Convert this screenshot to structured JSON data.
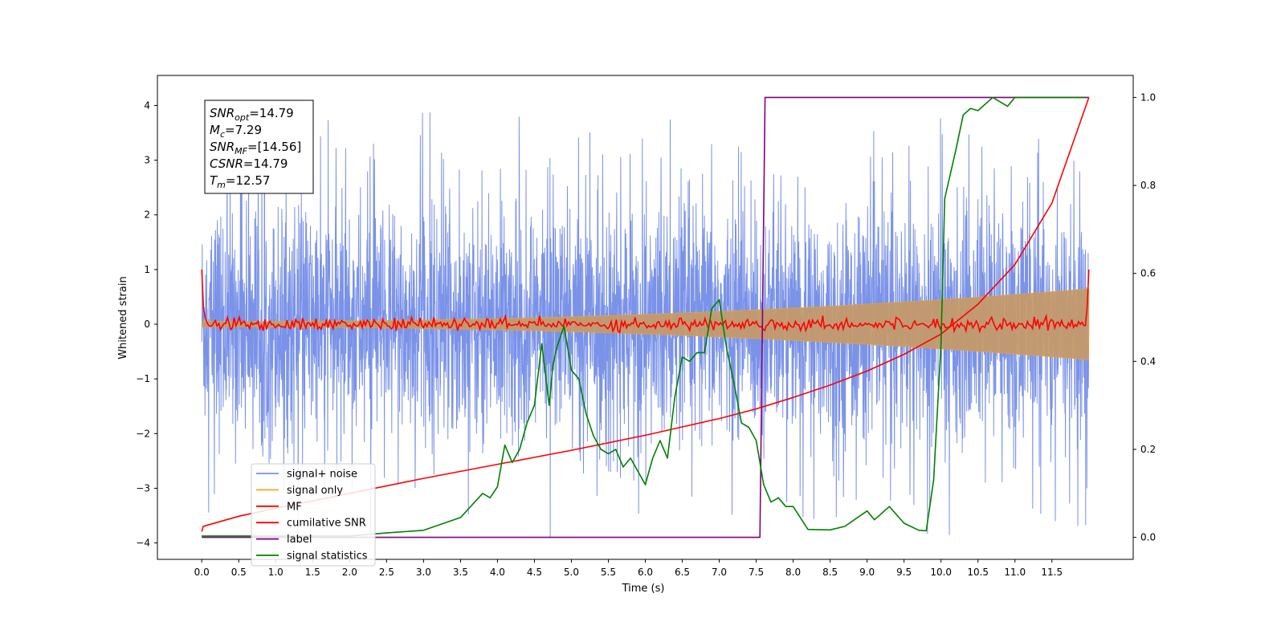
{
  "chart_data": {
    "type": "line",
    "xlabel": "Time (s)",
    "ylabel_left": "Whitened strain",
    "ylabel_right": "",
    "xlim": [
      -0.6,
      12.6
    ],
    "ylim_left": [
      -4.3,
      4.55
    ],
    "ylim_right": [
      -0.05,
      1.05
    ],
    "x_ticks": [
      0.0,
      0.5,
      1.0,
      1.5,
      2.0,
      2.5,
      3.0,
      3.5,
      4.0,
      4.5,
      5.0,
      5.5,
      6.0,
      6.5,
      7.0,
      7.5,
      8.0,
      8.5,
      9.0,
      9.5,
      10.0,
      10.5,
      11.0,
      11.5
    ],
    "x_tick_labels": [
      "0.0",
      "0.5",
      "1.0",
      "1.5",
      "2.0",
      "2.5",
      "3.0",
      "3.5",
      "4.0",
      "4.5",
      "5.0",
      "5.5",
      "6.0",
      "6.5",
      "7.0",
      "7.5",
      "8.0",
      "8.5",
      "9.0",
      "9.5",
      "10.0",
      "10.5",
      "11.0",
      "11.5"
    ],
    "y_left_ticks": [
      -4,
      -3,
      -2,
      -1,
      0,
      1,
      2,
      3,
      4
    ],
    "y_left_tick_labels": [
      "−4",
      "−3",
      "−2",
      "−1",
      "0",
      "1",
      "2",
      "3",
      "4"
    ],
    "y_right_ticks": [
      0.0,
      0.2,
      0.4,
      0.6,
      0.8,
      1.0
    ],
    "y_right_tick_labels": [
      "0.0",
      "0.2",
      "0.4",
      "0.6",
      "0.8",
      "1.0"
    ],
    "grid": false,
    "legend_position": "bottom-left",
    "colors": {
      "signal_noise": "#6b86e6",
      "signal_only": "#f5a623",
      "signal_fill": "#c49a6c",
      "mf": "#ff0000",
      "cumulative_snr": "#ff0000",
      "label": "#800080",
      "signal_statistics": "#008000"
    },
    "annotation": {
      "lines": [
        {
          "sym": "SNR",
          "sub": "opt",
          "val": "=14.79"
        },
        {
          "sym": "M",
          "sub": "c",
          "val": "=7.29"
        },
        {
          "sym": "SNR",
          "sub": "MF",
          "val": "=[14.56]"
        },
        {
          "sym": "CSNR",
          "sub": "",
          "val": "=14.79"
        },
        {
          "sym": "T",
          "sub": "m",
          "val": "=12.57"
        }
      ]
    },
    "series": [
      {
        "name": "signal+ noise",
        "axis": "left",
        "kind": "noise",
        "x_range": [
          0.0,
          12.0
        ],
        "envelope_typical": 1.5,
        "peak_max": 4.15,
        "trough_min": -3.9
      },
      {
        "name": "signal only",
        "axis": "left",
        "kind": "chirp",
        "x_range": [
          0.0,
          12.0
        ],
        "amplitude_start": 0.05,
        "amplitude_end": 0.65
      },
      {
        "name": "MF",
        "axis": "left",
        "kind": "noise_small",
        "x_range": [
          0.0,
          12.0
        ],
        "amplitude": 0.1,
        "endpoints": [
          1.0,
          1.0
        ]
      },
      {
        "name": "cumilative SNR",
        "axis": "right",
        "x": [
          0.0,
          0.02,
          0.5,
          1.0,
          2.0,
          3.0,
          4.0,
          5.0,
          6.0,
          7.0,
          7.5,
          8.0,
          8.5,
          9.0,
          9.5,
          10.0,
          10.5,
          11.0,
          11.5,
          12.0
        ],
        "values": [
          0.013,
          0.025,
          0.048,
          0.066,
          0.1,
          0.134,
          0.166,
          0.198,
          0.232,
          0.27,
          0.292,
          0.318,
          0.346,
          0.378,
          0.416,
          0.462,
          0.53,
          0.62,
          0.76,
          1.0
        ]
      },
      {
        "name": "label",
        "axis": "right",
        "x": [
          0.0,
          7.55,
          7.62,
          11.5,
          12.0
        ],
        "values": [
          0.0,
          0.0,
          1.0,
          1.0,
          1.0
        ]
      },
      {
        "name": "signal statistics",
        "axis": "right",
        "x": [
          0.0,
          1.0,
          2.0,
          2.5,
          3.0,
          3.5,
          3.8,
          3.9,
          4.0,
          4.1,
          4.2,
          4.3,
          4.4,
          4.5,
          4.6,
          4.7,
          4.75,
          4.8,
          4.9,
          5.0,
          5.1,
          5.2,
          5.3,
          5.4,
          5.5,
          5.6,
          5.7,
          5.8,
          6.0,
          6.1,
          6.2,
          6.3,
          6.4,
          6.5,
          6.6,
          6.7,
          6.8,
          6.9,
          7.0,
          7.1,
          7.2,
          7.3,
          7.4,
          7.5,
          7.6,
          7.7,
          7.8,
          7.9,
          8.0,
          8.2,
          8.5,
          8.7,
          9.0,
          9.1,
          9.3,
          9.5,
          9.7,
          9.8,
          9.9,
          10.0,
          10.05,
          10.2,
          10.3,
          10.4,
          10.5,
          10.7,
          10.9,
          11.0,
          11.5,
          11.95
        ],
        "values": [
          0.003,
          0.003,
          0.003,
          0.01,
          0.016,
          0.045,
          0.1,
          0.09,
          0.115,
          0.21,
          0.17,
          0.2,
          0.26,
          0.3,
          0.44,
          0.3,
          0.39,
          0.43,
          0.48,
          0.38,
          0.36,
          0.28,
          0.23,
          0.2,
          0.19,
          0.2,
          0.16,
          0.18,
          0.12,
          0.18,
          0.22,
          0.18,
          0.32,
          0.41,
          0.4,
          0.42,
          0.42,
          0.52,
          0.54,
          0.43,
          0.35,
          0.26,
          0.25,
          0.22,
          0.12,
          0.08,
          0.09,
          0.07,
          0.07,
          0.018,
          0.017,
          0.025,
          0.06,
          0.04,
          0.07,
          0.032,
          0.016,
          0.015,
          0.13,
          0.44,
          0.77,
          0.88,
          0.96,
          0.975,
          0.97,
          1.0,
          0.98,
          1.0,
          1.0,
          1.0
        ]
      }
    ]
  }
}
